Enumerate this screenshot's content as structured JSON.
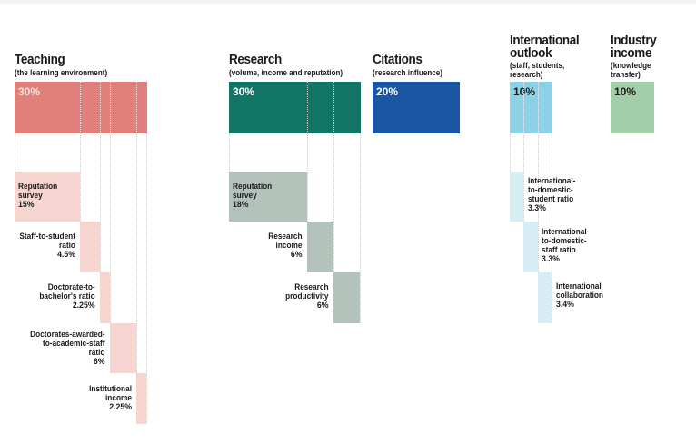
{
  "colors": {
    "teaching_main": "#e17f7a",
    "teaching_sub": "#f6d5d1",
    "research_main": "#137565",
    "research_sub": "#b3c2ba",
    "citations_main": "#1b56a3",
    "international_main": "#8dd1e6",
    "international_sub": "#d6edf4",
    "industry_main": "#a4cea7"
  },
  "pillars": {
    "teaching": {
      "title": "Teaching",
      "subtitle": "(the learning environment)",
      "weight": "30%",
      "metrics": [
        {
          "label": [
            "Reputation",
            "survey"
          ],
          "value": "15%"
        },
        {
          "label": [
            "Staff-to-student",
            "ratio"
          ],
          "value": "4.5%"
        },
        {
          "label": [
            "Doctorate-to-",
            "bachelor's ratio"
          ],
          "value": "2.25%"
        },
        {
          "label": [
            "Doctorates-awarded-",
            "to-academic-staff",
            "ratio"
          ],
          "value": "6%"
        },
        {
          "label": [
            "Institutional",
            "income"
          ],
          "value": "2.25%"
        }
      ]
    },
    "research": {
      "title": "Research",
      "subtitle": "(volume, income and reputation)",
      "weight": "30%",
      "metrics": [
        {
          "label": [
            "Reputation",
            "survey"
          ],
          "value": "18%"
        },
        {
          "label": [
            "Research",
            "income"
          ],
          "value": "6%"
        },
        {
          "label": [
            "Research",
            "productivity"
          ],
          "value": "6%"
        }
      ]
    },
    "citations": {
      "title": "Citations",
      "subtitle": "(research influence)",
      "weight": "20%"
    },
    "international": {
      "title": [
        "International",
        "outlook"
      ],
      "subtitle": [
        "(staff, students,",
        "research)"
      ],
      "weight": "10%",
      "metrics": [
        {
          "label": [
            "International-",
            "to-domestic-",
            "student ratio"
          ],
          "value": "3.3%"
        },
        {
          "label": [
            "International-",
            "to-domestic-",
            "staff ratio"
          ],
          "value": "3.3%"
        },
        {
          "label": [
            "International",
            "collaboration"
          ],
          "value": "3.4%"
        }
      ]
    },
    "industry": {
      "title": [
        "Industry",
        "income"
      ],
      "subtitle": [
        "(knowledge",
        "transfer)"
      ],
      "weight": "10%"
    }
  }
}
